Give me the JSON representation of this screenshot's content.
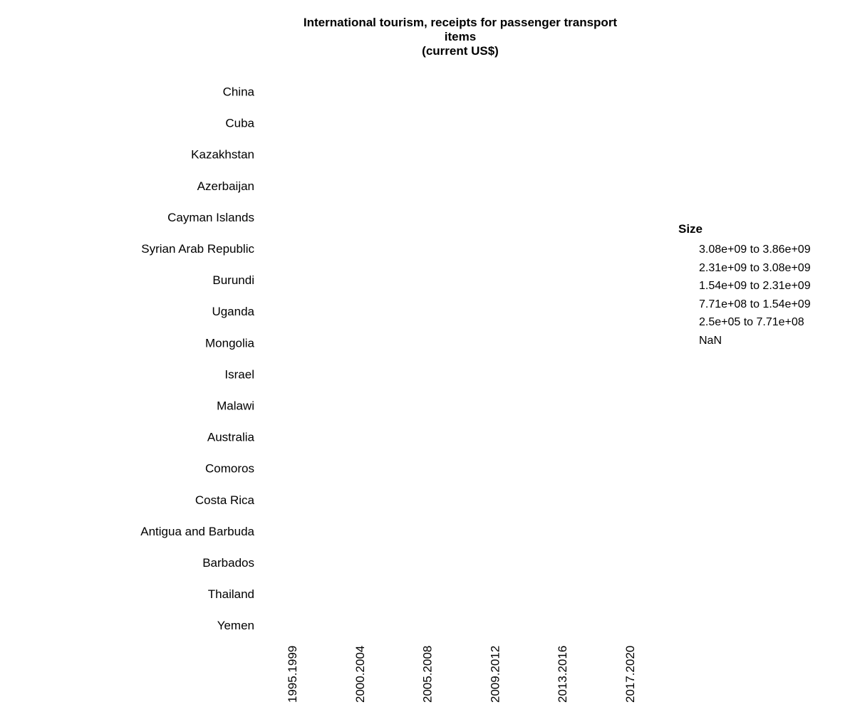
{
  "chart_data": {
    "type": "scatter",
    "title_lines": [
      "International tourism, receipts for passenger transport",
      "items",
      "(current US$)"
    ],
    "rows": [
      "China",
      "Cuba",
      "Kazakhstan",
      "Azerbaijan",
      "Cayman Islands",
      "Syrian Arab Republic",
      "Burundi",
      "Uganda",
      "Mongolia",
      "Israel",
      "Malawi",
      "Australia",
      "Comoros",
      "Costa Rica",
      "Antigua and Barbuda",
      "Barbados",
      "Thailand",
      "Yemen"
    ],
    "columns": [
      "1995.1999",
      "2000.2004",
      "2005.2008",
      "2009.2012",
      "2013.2016",
      "2017.2020"
    ],
    "legend": {
      "title": "Size",
      "items": [
        "3.08e+09 to 3.86e+09",
        "2.31e+09 to 3.08e+09",
        "1.54e+09 to 2.31e+09",
        "7.71e+08 to 1.54e+09",
        "2.5e+05 to 7.71e+08",
        "NaN"
      ]
    },
    "points": [],
    "grid": false
  }
}
